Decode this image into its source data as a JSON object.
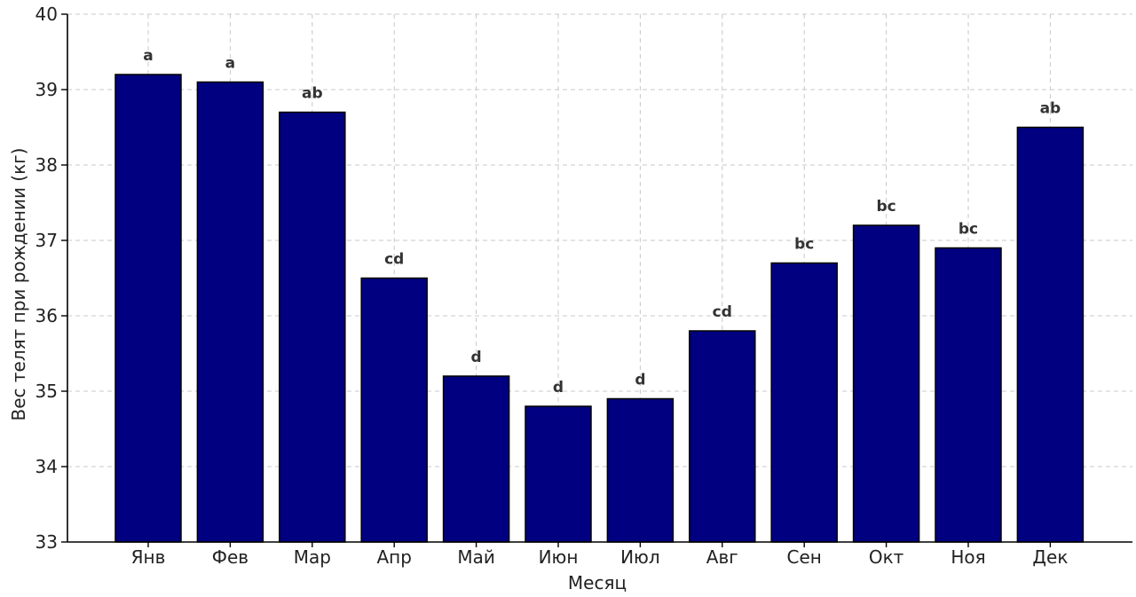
{
  "chart_data": {
    "type": "bar",
    "title": "",
    "xlabel": "Месяц",
    "ylabel": "Вес телят при рождении (кг)",
    "categories": [
      "Янв",
      "Фев",
      "Мар",
      "Апр",
      "Май",
      "Июн",
      "Июл",
      "Авг",
      "Сен",
      "Окт",
      "Ноя",
      "Дек"
    ],
    "values": [
      39.2,
      39.1,
      38.7,
      36.5,
      35.2,
      34.8,
      34.9,
      35.8,
      36.7,
      37.2,
      36.9,
      38.5
    ],
    "annotations": [
      "a",
      "a",
      "ab",
      "cd",
      "d",
      "d",
      "d",
      "cd",
      "bc",
      "bc",
      "bc",
      "ab"
    ],
    "ylim": [
      33,
      40
    ],
    "yticks": [
      "33",
      "34",
      "35",
      "36",
      "37",
      "38",
      "39",
      "40"
    ],
    "grid": true,
    "bar_color": "#000080",
    "edge_color": "#000000"
  }
}
